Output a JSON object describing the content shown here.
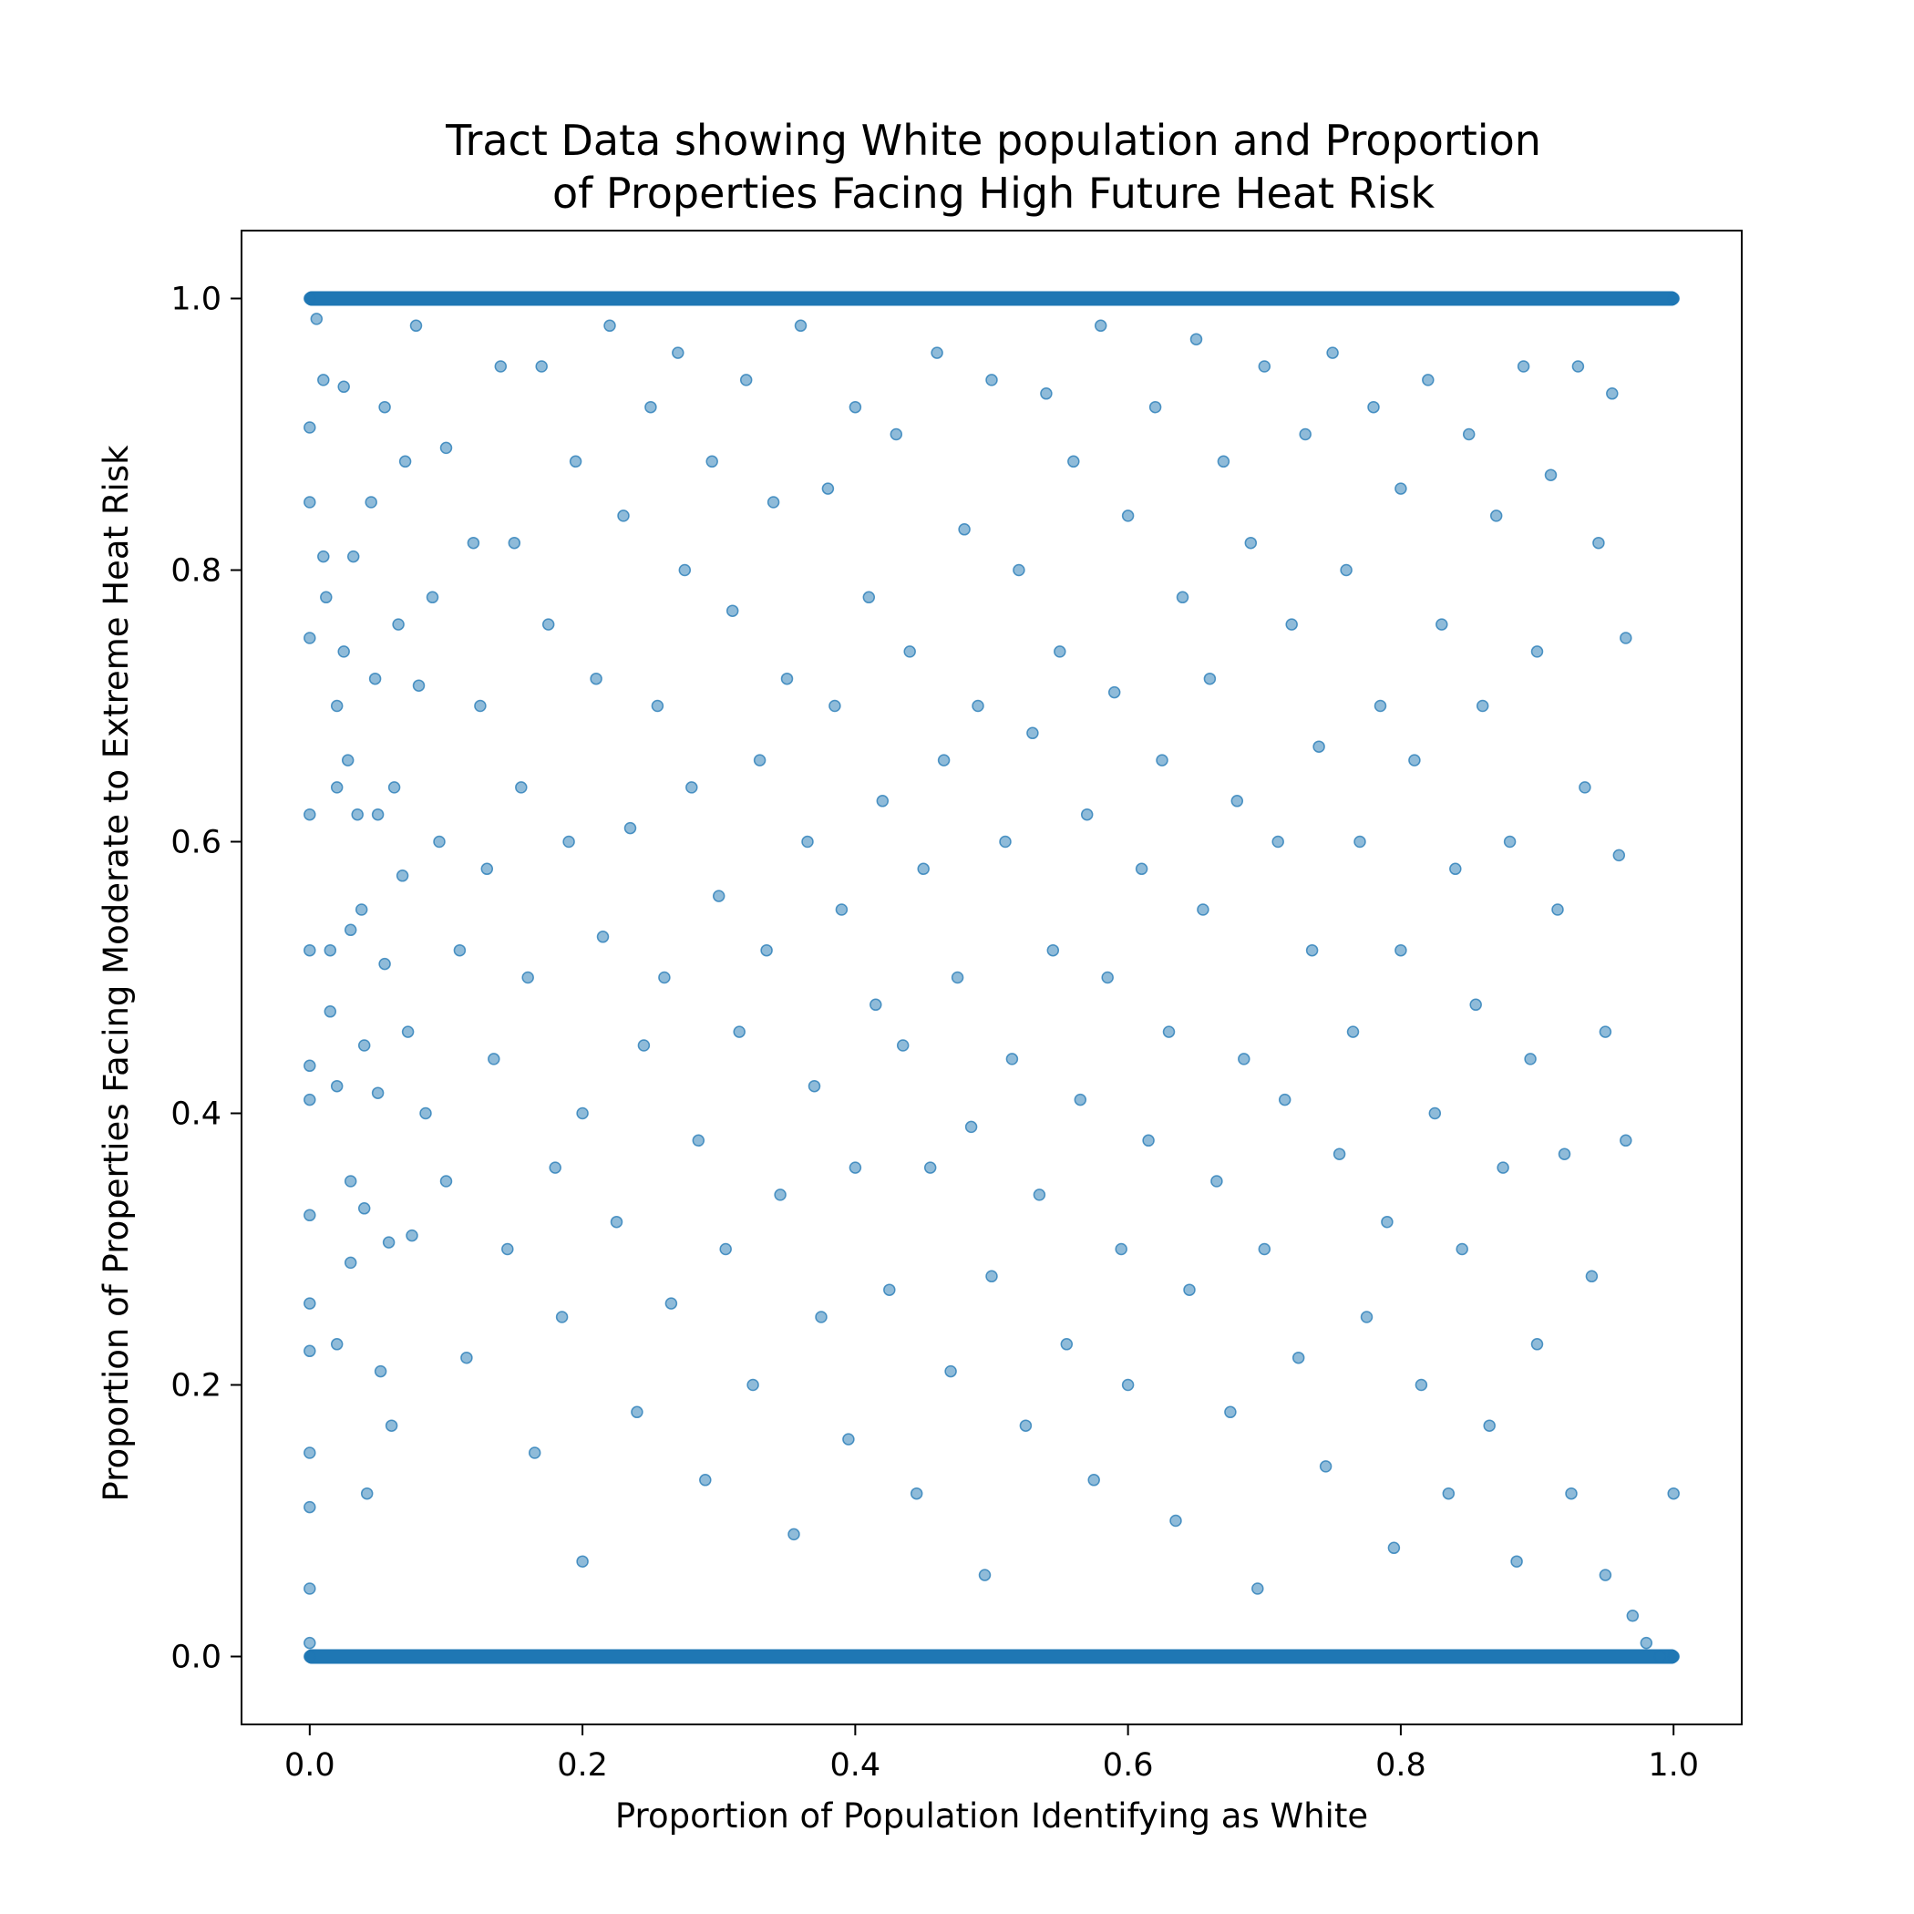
{
  "chart_data": {
    "type": "scatter",
    "title_lines": [
      "Tract Data showing White population and Proportion",
      "of Properties Facing High Future Heat Risk"
    ],
    "xlabel": "Proportion of Population Identifying as White",
    "ylabel": "Proportion of Properties Facing Moderate to Extreme Heat Risk",
    "xlim": [
      -0.05,
      1.05
    ],
    "ylim": [
      -0.05,
      1.05
    ],
    "xticks": [
      0.0,
      0.2,
      0.4,
      0.6,
      0.8,
      1.0
    ],
    "yticks": [
      0.0,
      0.2,
      0.4,
      0.6,
      0.8,
      1.0
    ],
    "xtick_labels": [
      "0.0",
      "0.2",
      "0.4",
      "0.6",
      "0.8",
      "1.0"
    ],
    "ytick_labels": [
      "0.0",
      "0.2",
      "0.4",
      "0.6",
      "0.8",
      "1.0"
    ],
    "grid": false,
    "marker_color": "#1f77b4",
    "marker_alpha": 0.5,
    "points": [
      [
        0.0,
        1.0
      ],
      [
        0.0,
        0.0
      ],
      [
        0.0,
        0.905
      ],
      [
        0.0,
        0.85
      ],
      [
        0.0,
        0.75
      ],
      [
        0.0,
        0.435
      ],
      [
        0.0,
        0.41
      ],
      [
        0.0,
        0.325
      ],
      [
        0.0,
        0.26
      ],
      [
        0.0,
        0.225
      ],
      [
        0.0,
        0.15
      ],
      [
        0.0,
        0.11
      ],
      [
        0.0,
        0.05
      ],
      [
        0.0,
        0.01
      ],
      [
        0.0,
        0.62
      ],
      [
        0.0,
        0.52
      ],
      [
        0.005,
        0.985
      ],
      [
        0.01,
        0.94
      ],
      [
        0.01,
        0.81
      ],
      [
        0.012,
        0.78
      ],
      [
        0.015,
        0.52
      ],
      [
        0.015,
        0.475
      ],
      [
        0.02,
        0.7
      ],
      [
        0.02,
        0.64
      ],
      [
        0.02,
        0.42
      ],
      [
        0.02,
        0.23
      ],
      [
        0.025,
        0.935
      ],
      [
        0.025,
        0.74
      ],
      [
        0.028,
        0.66
      ],
      [
        0.03,
        0.535
      ],
      [
        0.03,
        0.35
      ],
      [
        0.03,
        0.29
      ],
      [
        0.032,
        0.81
      ],
      [
        0.035,
        0.62
      ],
      [
        0.038,
        0.55
      ],
      [
        0.04,
        0.45
      ],
      [
        0.04,
        0.33
      ],
      [
        0.042,
        0.12
      ],
      [
        0.045,
        0.85
      ],
      [
        0.048,
        0.72
      ],
      [
        0.05,
        0.62
      ],
      [
        0.05,
        0.415
      ],
      [
        0.052,
        0.21
      ],
      [
        0.055,
        0.92
      ],
      [
        0.055,
        0.51
      ],
      [
        0.058,
        0.305
      ],
      [
        0.06,
        0.17
      ],
      [
        0.062,
        0.64
      ],
      [
        0.065,
        0.76
      ],
      [
        0.068,
        0.575
      ],
      [
        0.07,
        0.88
      ],
      [
        0.072,
        0.46
      ],
      [
        0.075,
        0.31
      ],
      [
        0.078,
        0.98
      ],
      [
        0.08,
        0.715
      ],
      [
        0.085,
        0.4
      ],
      [
        0.09,
        0.78
      ],
      [
        0.095,
        0.6
      ],
      [
        0.1,
        0.89
      ],
      [
        0.1,
        0.35
      ],
      [
        0.11,
        0.52
      ],
      [
        0.115,
        0.22
      ],
      [
        0.12,
        0.82
      ],
      [
        0.125,
        0.7
      ],
      [
        0.13,
        0.58
      ],
      [
        0.135,
        0.44
      ],
      [
        0.14,
        0.95
      ],
      [
        0.145,
        0.3
      ],
      [
        0.15,
        0.82
      ],
      [
        0.155,
        0.64
      ],
      [
        0.16,
        0.5
      ],
      [
        0.165,
        0.15
      ],
      [
        0.17,
        0.95
      ],
      [
        0.175,
        0.76
      ],
      [
        0.18,
        0.36
      ],
      [
        0.185,
        0.25
      ],
      [
        0.19,
        0.6
      ],
      [
        0.195,
        0.88
      ],
      [
        0.2,
        0.4
      ],
      [
        0.2,
        0.07
      ],
      [
        0.21,
        0.72
      ],
      [
        0.215,
        0.53
      ],
      [
        0.22,
        0.98
      ],
      [
        0.225,
        0.32
      ],
      [
        0.23,
        0.84
      ],
      [
        0.235,
        0.61
      ],
      [
        0.24,
        0.18
      ],
      [
        0.245,
        0.45
      ],
      [
        0.25,
        0.92
      ],
      [
        0.255,
        0.7
      ],
      [
        0.26,
        0.5
      ],
      [
        0.265,
        0.26
      ],
      [
        0.27,
        0.96
      ],
      [
        0.275,
        0.8
      ],
      [
        0.28,
        0.64
      ],
      [
        0.285,
        0.38
      ],
      [
        0.29,
        0.13
      ],
      [
        0.295,
        0.88
      ],
      [
        0.3,
        0.56
      ],
      [
        0.305,
        0.3
      ],
      [
        0.31,
        0.77
      ],
      [
        0.315,
        0.46
      ],
      [
        0.32,
        0.94
      ],
      [
        0.325,
        0.2
      ],
      [
        0.33,
        0.66
      ],
      [
        0.335,
        0.52
      ],
      [
        0.34,
        0.85
      ],
      [
        0.345,
        0.34
      ],
      [
        0.35,
        0.72
      ],
      [
        0.355,
        0.09
      ],
      [
        0.36,
        0.98
      ],
      [
        0.365,
        0.6
      ],
      [
        0.37,
        0.42
      ],
      [
        0.375,
        0.25
      ],
      [
        0.38,
        0.86
      ],
      [
        0.385,
        0.7
      ],
      [
        0.39,
        0.55
      ],
      [
        0.395,
        0.16
      ],
      [
        0.4,
        0.92
      ],
      [
        0.4,
        0.36
      ],
      [
        0.41,
        0.78
      ],
      [
        0.415,
        0.48
      ],
      [
        0.42,
        0.63
      ],
      [
        0.425,
        0.27
      ],
      [
        0.43,
        0.9
      ],
      [
        0.435,
        0.45
      ],
      [
        0.44,
        0.74
      ],
      [
        0.445,
        0.12
      ],
      [
        0.45,
        0.58
      ],
      [
        0.455,
        0.36
      ],
      [
        0.46,
        0.96
      ],
      [
        0.465,
        0.66
      ],
      [
        0.47,
        0.21
      ],
      [
        0.475,
        0.5
      ],
      [
        0.48,
        0.83
      ],
      [
        0.485,
        0.39
      ],
      [
        0.49,
        0.7
      ],
      [
        0.495,
        0.06
      ],
      [
        0.5,
        0.94
      ],
      [
        0.5,
        0.28
      ],
      [
        0.51,
        0.6
      ],
      [
        0.515,
        0.44
      ],
      [
        0.52,
        0.8
      ],
      [
        0.525,
        0.17
      ],
      [
        0.53,
        0.68
      ],
      [
        0.535,
        0.34
      ],
      [
        0.54,
        0.93
      ],
      [
        0.545,
        0.52
      ],
      [
        0.55,
        0.74
      ],
      [
        0.555,
        0.23
      ],
      [
        0.56,
        0.88
      ],
      [
        0.565,
        0.41
      ],
      [
        0.57,
        0.62
      ],
      [
        0.575,
        0.13
      ],
      [
        0.58,
        0.98
      ],
      [
        0.585,
        0.5
      ],
      [
        0.59,
        0.71
      ],
      [
        0.595,
        0.3
      ],
      [
        0.6,
        0.84
      ],
      [
        0.6,
        0.2
      ],
      [
        0.61,
        0.58
      ],
      [
        0.615,
        0.38
      ],
      [
        0.62,
        0.92
      ],
      [
        0.625,
        0.66
      ],
      [
        0.63,
        0.46
      ],
      [
        0.635,
        0.1
      ],
      [
        0.64,
        0.78
      ],
      [
        0.645,
        0.27
      ],
      [
        0.65,
        0.97
      ],
      [
        0.655,
        0.55
      ],
      [
        0.66,
        0.72
      ],
      [
        0.665,
        0.35
      ],
      [
        0.67,
        0.88
      ],
      [
        0.675,
        0.18
      ],
      [
        0.68,
        0.63
      ],
      [
        0.685,
        0.44
      ],
      [
        0.69,
        0.82
      ],
      [
        0.695,
        0.05
      ],
      [
        0.7,
        0.95
      ],
      [
        0.7,
        0.3
      ],
      [
        0.71,
        0.6
      ],
      [
        0.715,
        0.41
      ],
      [
        0.72,
        0.76
      ],
      [
        0.725,
        0.22
      ],
      [
        0.73,
        0.9
      ],
      [
        0.735,
        0.52
      ],
      [
        0.74,
        0.67
      ],
      [
        0.745,
        0.14
      ],
      [
        0.75,
        0.96
      ],
      [
        0.755,
        0.37
      ],
      [
        0.76,
        0.8
      ],
      [
        0.765,
        0.46
      ],
      [
        0.77,
        0.6
      ],
      [
        0.775,
        0.25
      ],
      [
        0.78,
        0.92
      ],
      [
        0.785,
        0.7
      ],
      [
        0.79,
        0.32
      ],
      [
        0.795,
        0.08
      ],
      [
        0.8,
        0.86
      ],
      [
        0.8,
        0.52
      ],
      [
        0.81,
        0.66
      ],
      [
        0.815,
        0.2
      ],
      [
        0.82,
        0.94
      ],
      [
        0.825,
        0.4
      ],
      [
        0.83,
        0.76
      ],
      [
        0.835,
        0.12
      ],
      [
        0.84,
        0.58
      ],
      [
        0.845,
        0.3
      ],
      [
        0.85,
        0.9
      ],
      [
        0.855,
        0.48
      ],
      [
        0.86,
        0.7
      ],
      [
        0.865,
        0.17
      ],
      [
        0.87,
        0.84
      ],
      [
        0.875,
        0.36
      ],
      [
        0.88,
        0.6
      ],
      [
        0.885,
        0.07
      ],
      [
        0.89,
        0.95
      ],
      [
        0.895,
        0.44
      ],
      [
        0.9,
        0.74
      ],
      [
        0.9,
        0.23
      ],
      [
        0.91,
        0.87
      ],
      [
        0.915,
        0.55
      ],
      [
        0.92,
        0.37
      ],
      [
        0.925,
        0.12
      ],
      [
        0.93,
        0.95
      ],
      [
        0.935,
        0.64
      ],
      [
        0.94,
        0.28
      ],
      [
        0.945,
        0.82
      ],
      [
        0.95,
        0.46
      ],
      [
        0.95,
        0.06
      ],
      [
        0.955,
        0.93
      ],
      [
        0.96,
        0.59
      ],
      [
        0.965,
        0.38
      ],
      [
        0.97,
        0.03
      ],
      [
        0.98,
        0.01
      ],
      [
        0.99,
        0.0
      ],
      [
        1.0,
        0.0
      ],
      [
        1.0,
        1.0
      ],
      [
        1.0,
        0.12
      ],
      [
        0.965,
        0.75
      ]
    ]
  }
}
